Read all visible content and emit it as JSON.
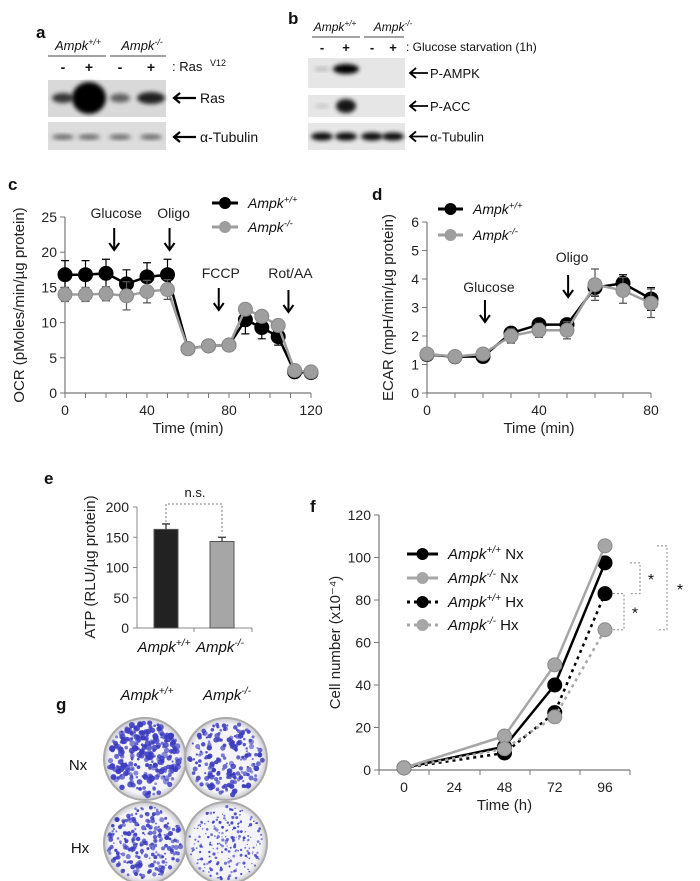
{
  "panel_labels": {
    "a": "a",
    "b": "b",
    "c": "c",
    "d": "d",
    "e": "e",
    "f": "f",
    "g": "g"
  },
  "blot_a": {
    "genotypes": [
      "Ampk+/+",
      "Ampk-/-"
    ],
    "lanes": [
      "-",
      "+",
      "-",
      "+"
    ],
    "condition": ": Ras",
    "condition_sup": "V12",
    "bands": [
      "Ras",
      "α-Tubulin"
    ]
  },
  "blot_b": {
    "genotypes": [
      "Ampk+/+",
      "Ampk-/-"
    ],
    "lanes": [
      "-",
      "+",
      "-",
      "+"
    ],
    "condition": ": Glucose starvation (1h)",
    "bands": [
      "P-AMPK",
      "P-ACC",
      "α-Tubulin"
    ]
  },
  "colonies": {
    "genotypes": [
      "Ampk+/+",
      "Ampk-/-"
    ],
    "conditions": [
      "Nx",
      "Hx"
    ],
    "stain_color": "#3b3bbf"
  },
  "chart_data": [
    {
      "panel": "c",
      "type": "line",
      "xlabel": "Time (min)",
      "ylabel": "OCR (pMoles/min/µg protein)",
      "xlim": [
        0,
        120
      ],
      "ylim": [
        0,
        25
      ],
      "xticks": [
        0,
        40,
        80,
        120
      ],
      "yticks": [
        0,
        5,
        10,
        15,
        20,
        25
      ],
      "grid": false,
      "legend": "top-right",
      "series": [
        {
          "name": "Ampk+/+",
          "color": "#000000",
          "line_style": "solid",
          "x": [
            0,
            10,
            20,
            30,
            40,
            50,
            60,
            70,
            80,
            88,
            96,
            104,
            112,
            120
          ],
          "y": [
            16.8,
            16.8,
            17.0,
            15.5,
            16.5,
            16.8,
            6.3,
            6.7,
            6.8,
            10.4,
            9.3,
            8.0,
            3.0,
            2.9
          ],
          "err": [
            2,
            2,
            2,
            2,
            2,
            2.2,
            0.3,
            0.3,
            0.3,
            2,
            1.6,
            1.2,
            0.3,
            0.3
          ]
        },
        {
          "name": "Ampk-/-",
          "color": "#9e9e9e",
          "line_style": "solid",
          "x": [
            0,
            10,
            20,
            30,
            40,
            50,
            60,
            70,
            80,
            88,
            96,
            104,
            112,
            120
          ],
          "y": [
            14.0,
            14.0,
            14.1,
            13.8,
            14.4,
            14.7,
            6.3,
            6.7,
            6.8,
            11.9,
            10.9,
            9.6,
            3.2,
            3.0
          ],
          "err": [
            1,
            1,
            1,
            2,
            1.6,
            1.4,
            0.3,
            0.3,
            0.3,
            0.3,
            0.3,
            0.3,
            0.3,
            0.3
          ]
        }
      ],
      "annotations": [
        {
          "label": "Glucose",
          "x": 24
        },
        {
          "label": "Oligo",
          "x": 51
        },
        {
          "label": "FCCP",
          "x": 75
        },
        {
          "label": "Rot/AA",
          "x": 109
        }
      ]
    },
    {
      "panel": "d",
      "type": "line",
      "xlabel": "Time (min)",
      "ylabel": "ECAR (mpH/min/µg protein)",
      "xlim": [
        0,
        80
      ],
      "ylim": [
        0,
        6
      ],
      "xticks": [
        0,
        40,
        80
      ],
      "yticks": [
        0,
        1,
        2,
        3,
        4,
        5,
        6
      ],
      "grid": false,
      "legend": "top-left",
      "series": [
        {
          "name": "Ampk+/+",
          "color": "#000000",
          "line_style": "solid",
          "x": [
            0,
            10,
            20,
            30,
            40,
            50,
            60,
            70,
            80
          ],
          "y": [
            1.35,
            1.27,
            1.28,
            2.1,
            2.4,
            2.4,
            3.7,
            3.85,
            3.3
          ],
          "err": [
            0.05,
            0.05,
            0.05,
            0.1,
            0.1,
            0.1,
            0.3,
            0.3,
            0.4
          ]
        },
        {
          "name": "Ampk-/-",
          "color": "#9e9e9e",
          "line_style": "solid",
          "x": [
            0,
            10,
            20,
            30,
            40,
            50,
            60,
            70,
            80
          ],
          "y": [
            1.37,
            1.28,
            1.37,
            2.0,
            2.2,
            2.2,
            3.8,
            3.6,
            3.15
          ],
          "err": [
            0.05,
            0.05,
            0.05,
            0.25,
            0.25,
            0.3,
            0.55,
            0.45,
            0.5
          ]
        }
      ],
      "annotations": [
        {
          "label": "Glucose",
          "x": 20.7
        },
        {
          "label": "Oligo",
          "x": 50.4
        }
      ]
    },
    {
      "panel": "e",
      "type": "bar",
      "ylabel": "ATP (RLU/µg protein)",
      "categories": [
        "Ampk+/+",
        "Ampk-/-"
      ],
      "values": [
        163,
        143
      ],
      "err": [
        9,
        7
      ],
      "colors": [
        "#222222",
        "#a6a6a6"
      ],
      "ylim": [
        0,
        200
      ],
      "yticks": [
        0,
        50,
        100,
        150,
        200
      ],
      "grid": false,
      "annotations": [
        {
          "label": "n.s.",
          "between": [
            "Ampk+/+",
            "Ampk-/-"
          ]
        }
      ]
    },
    {
      "panel": "f",
      "type": "line",
      "xlabel": "Time (h)",
      "ylabel": "Cell number (x10⁻⁴)",
      "xlim": [
        0,
        96
      ],
      "ylim": [
        0,
        120
      ],
      "xticks": [
        0,
        24,
        48,
        72,
        96
      ],
      "yticks": [
        0,
        20,
        40,
        60,
        80,
        100,
        120
      ],
      "grid": false,
      "legend": "top-left",
      "series": [
        {
          "name": "Ampk+/+ Nx",
          "color": "#000000",
          "line_style": "solid",
          "x": [
            0,
            48,
            72,
            96
          ],
          "y": [
            1,
            11,
            40,
            97.5
          ]
        },
        {
          "name": "Ampk-/- Nx",
          "color": "#a6a6a6",
          "line_style": "solid",
          "x": [
            0,
            48,
            72,
            96
          ],
          "y": [
            1,
            16,
            49.5,
            105.5
          ]
        },
        {
          "name": "Ampk+/+ Hx",
          "color": "#000000",
          "line_style": "dotted",
          "x": [
            0,
            48,
            72,
            96
          ],
          "y": [
            1,
            8,
            27,
            83
          ]
        },
        {
          "name": "Ampk-/- Hx",
          "color": "#a6a6a6",
          "line_style": "dotted",
          "x": [
            0,
            48,
            72,
            96
          ],
          "y": [
            1,
            10,
            25,
            66
          ]
        }
      ],
      "annotations": [
        {
          "label": "*",
          "between": [
            "Ampk+/+ Nx",
            "Ampk+/+ Hx"
          ]
        },
        {
          "label": "*",
          "between": [
            "Ampk+/+ Hx",
            "Ampk-/- Hx"
          ]
        },
        {
          "label": "*",
          "between": [
            "Ampk-/- Nx",
            "Ampk-/- Hx"
          ]
        }
      ]
    }
  ]
}
